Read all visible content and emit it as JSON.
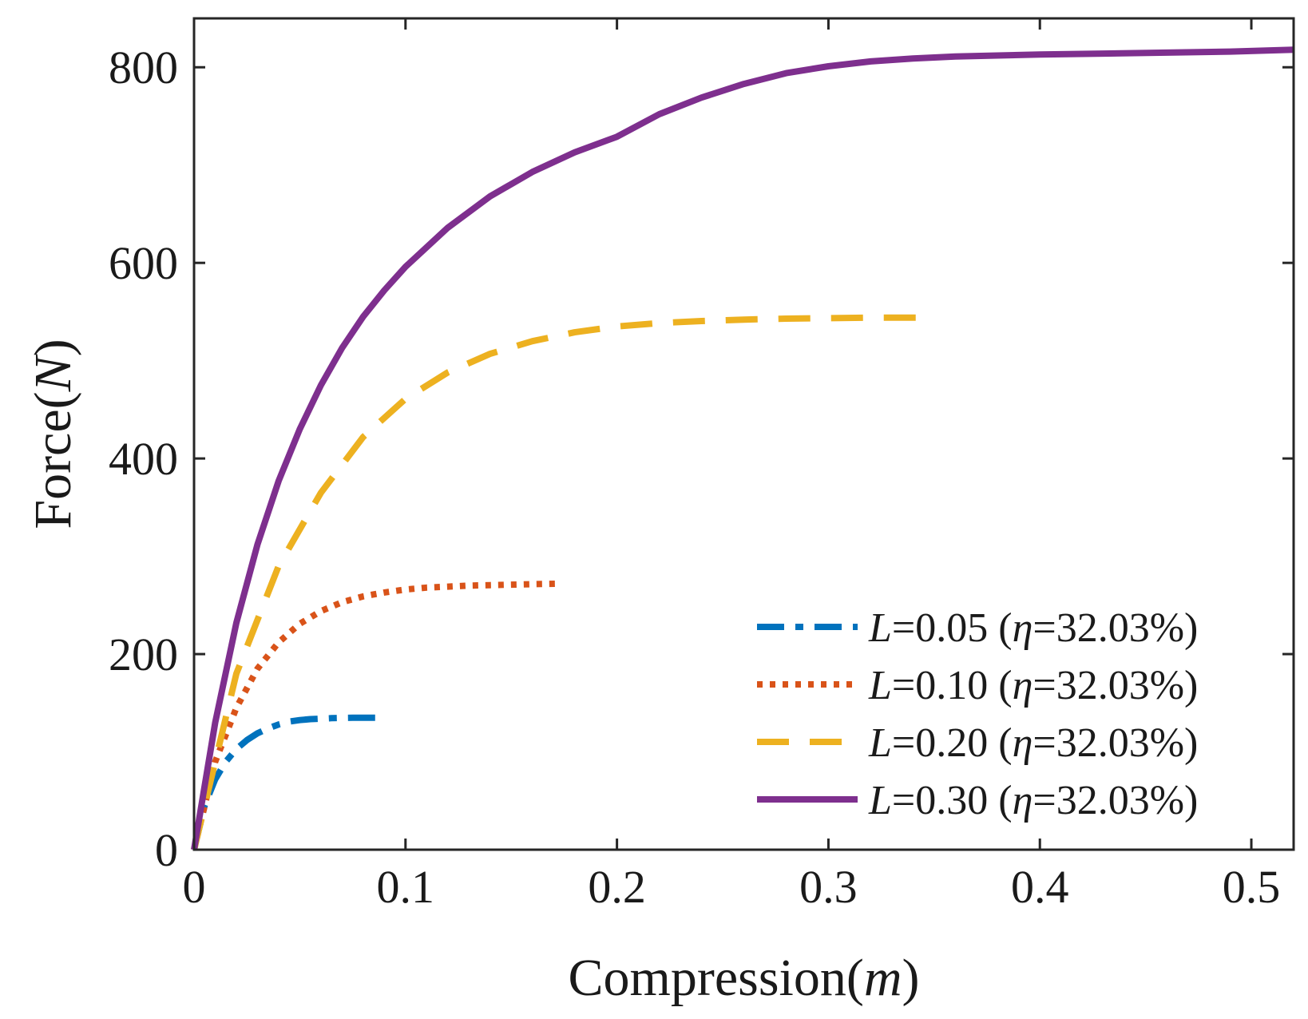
{
  "chart_data": {
    "type": "line",
    "title": "",
    "xlabel": {
      "prefix": "Compression(",
      "var": "m",
      "suffix": ")"
    },
    "ylabel": {
      "prefix": "Force(",
      "var": "N",
      "suffix": ")"
    },
    "xlim": [
      0,
      0.52
    ],
    "ylim": [
      0,
      850
    ],
    "xticks": [
      0,
      0.1,
      0.2,
      0.3,
      0.4,
      0.5
    ],
    "xtick_labels": [
      "0",
      "0.1",
      "0.2",
      "0.3",
      "0.4",
      "0.5"
    ],
    "yticks": [
      0,
      200,
      400,
      600,
      800
    ],
    "ytick_labels": [
      "0",
      "200",
      "400",
      "600",
      "800"
    ],
    "grid": false,
    "legend_position": "bottom-right",
    "series": [
      {
        "name": "L=0.05 (η=32.03%)",
        "label_var": "L",
        "label_value": "=0.05 (",
        "label_eta": "η",
        "label_rest": "=32.03%)",
        "color": "#0072BD",
        "style": "dashdot",
        "x": [
          0,
          0.005,
          0.01,
          0.015,
          0.02,
          0.025,
          0.03,
          0.035,
          0.04,
          0.045,
          0.05,
          0.055,
          0.06,
          0.065,
          0.07,
          0.075,
          0.08,
          0.087
        ],
        "y": [
          0,
          45,
          72,
          90,
          103,
          112,
          119,
          124,
          128,
          131,
          132.5,
          133.5,
          134,
          134.5,
          134.7,
          134.9,
          135,
          135
        ]
      },
      {
        "name": "L=0.10 (η=32.03%)",
        "label_var": "L",
        "label_value": "=0.10 (",
        "label_eta": "η",
        "label_rest": "=32.03%)",
        "color": "#D95319",
        "style": "dotted",
        "x": [
          0,
          0.01,
          0.02,
          0.03,
          0.04,
          0.05,
          0.06,
          0.07,
          0.08,
          0.09,
          0.1,
          0.11,
          0.12,
          0.13,
          0.14,
          0.15,
          0.16,
          0.174
        ],
        "y": [
          0,
          90,
          145,
          185,
          212,
          231,
          244,
          253,
          259,
          263,
          266,
          268,
          269,
          270,
          270.5,
          271,
          271.5,
          272
        ]
      },
      {
        "name": "L=0.20 (η=32.03%)",
        "label_var": "L",
        "label_value": "=0.20 (",
        "label_eta": "η",
        "label_rest": "=32.03%)",
        "color": "#EDB120",
        "style": "dashed",
        "x": [
          0,
          0.02,
          0.04,
          0.06,
          0.08,
          0.1,
          0.12,
          0.14,
          0.16,
          0.18,
          0.2,
          0.22,
          0.24,
          0.26,
          0.28,
          0.3,
          0.32,
          0.345
        ],
        "y": [
          0,
          180,
          290,
          365,
          422,
          461,
          488,
          507,
          520,
          529,
          535,
          538.5,
          540.5,
          542,
          543,
          543.5,
          544,
          544
        ]
      },
      {
        "name": "L=0.30 (η=32.03%)",
        "label_var": "L",
        "label_value": "=0.30 (",
        "label_eta": "η",
        "label_rest": "=32.03%)",
        "color": "#7E2F8E",
        "style": "solid",
        "x": [
          0,
          0.01,
          0.02,
          0.03,
          0.04,
          0.05,
          0.06,
          0.07,
          0.08,
          0.09,
          0.1,
          0.12,
          0.14,
          0.16,
          0.18,
          0.2,
          0.22,
          0.24,
          0.26,
          0.28,
          0.3,
          0.32,
          0.34,
          0.36,
          0.38,
          0.4,
          0.43,
          0.46,
          0.49,
          0.52
        ],
        "y": [
          0,
          130,
          232,
          312,
          377,
          430,
          475,
          513,
          545,
          572,
          596,
          636,
          668,
          693,
          713,
          729,
          752,
          769,
          783,
          794,
          801,
          806,
          809,
          811,
          812,
          813,
          814,
          815,
          816,
          818
        ]
      }
    ]
  }
}
